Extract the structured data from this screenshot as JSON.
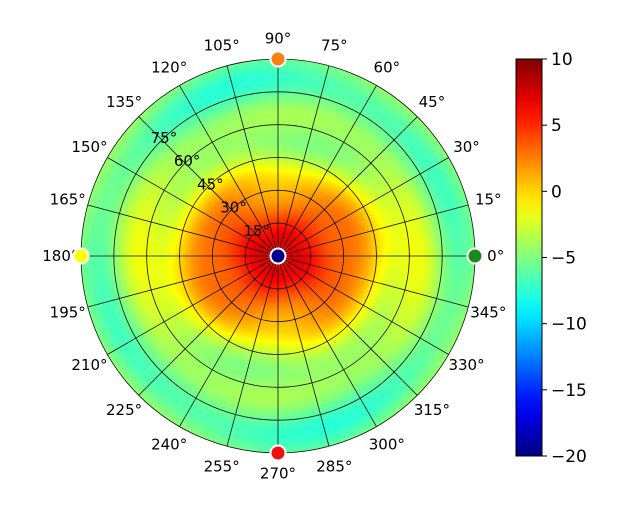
{
  "chart_data": {
    "type": "heatmap",
    "projection": "polar",
    "title": "",
    "angular_ticks": [
      "0°",
      "15°",
      "30°",
      "45°",
      "60°",
      "75°",
      "90°",
      "105°",
      "120°",
      "135°",
      "150°",
      "165°",
      "180°",
      "195°",
      "210°",
      "225°",
      "240°",
      "255°",
      "270°",
      "285°",
      "300°",
      "315°",
      "330°",
      "345°"
    ],
    "angular_tick_values_deg": [
      0,
      15,
      30,
      45,
      60,
      75,
      90,
      105,
      120,
      135,
      150,
      165,
      180,
      195,
      210,
      225,
      240,
      255,
      270,
      285,
      300,
      315,
      330,
      345
    ],
    "radial_ticks": [
      "15°",
      "30°",
      "45°",
      "60°",
      "75°"
    ],
    "radial_tick_values_deg": [
      15,
      30,
      45,
      60,
      75
    ],
    "radial_range_deg": [
      0,
      90
    ],
    "radial_label_angle_deg": 135,
    "grid": true,
    "colormap": "jet",
    "colorbar": {
      "range": [
        -20,
        10
      ],
      "ticks": [
        10,
        5,
        0,
        -5,
        -10,
        -15,
        -20
      ],
      "tick_labels": [
        "10",
        "5",
        "0",
        "−5",
        "−10",
        "−15",
        "−20"
      ]
    },
    "field_description": {
      "peak_value": 7,
      "edge_value_approx": -6,
      "main_lobe_axis_deg": [
        0,
        180
      ]
    },
    "markers": [
      {
        "angle_deg": 90,
        "radius_deg": 90,
        "color": "#ff7f0e"
      },
      {
        "angle_deg": 0,
        "radius_deg": 90,
        "color": "#1a8a1a"
      },
      {
        "angle_deg": 180,
        "radius_deg": 90,
        "color": "#ffff00"
      },
      {
        "angle_deg": 270,
        "radius_deg": 90,
        "color": "#ee1111"
      },
      {
        "angle_deg": 0,
        "radius_deg": 0,
        "color": "#00008b"
      }
    ]
  }
}
